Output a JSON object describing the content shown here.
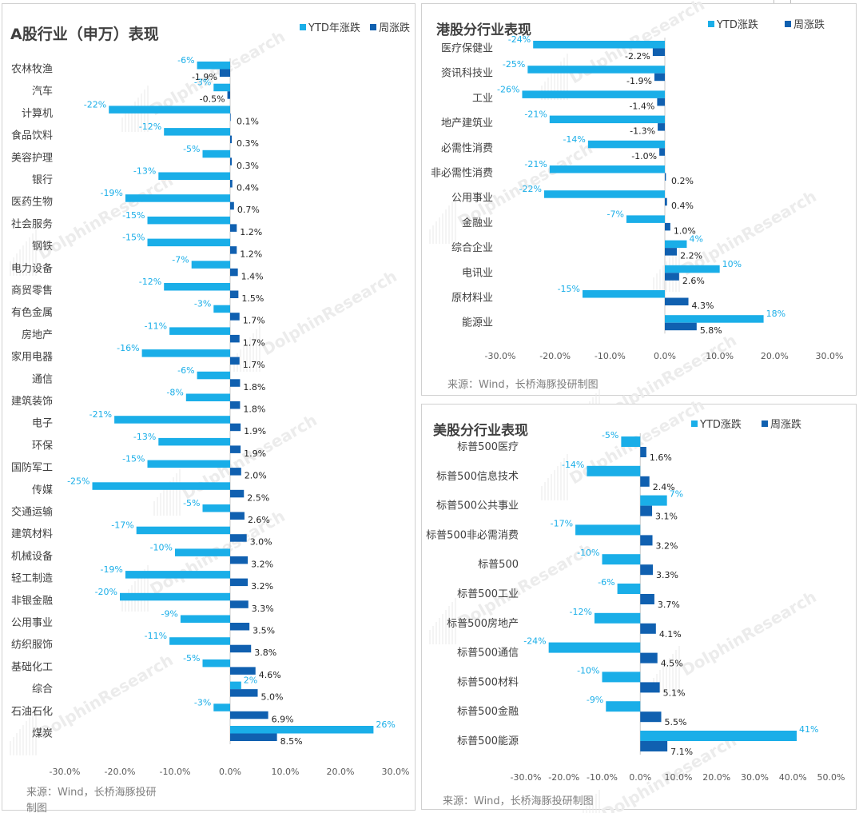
{
  "colors": {
    "ytd": "#1aaee8",
    "week": "#1060b0",
    "title": "#404040",
    "axis": "#c8c8c8",
    "source": "#7f7f7f"
  },
  "chart_data": [
    {
      "id": "a-share",
      "type": "bar",
      "orientation": "horizontal",
      "title": "A股行业（申万）表现",
      "legend": [
        "YTD年涨跌",
        "周涨跌"
      ],
      "legend_position": "top-right",
      "categories": [
        "农林牧渔",
        "汽车",
        "计算机",
        "食品饮料",
        "美容护理",
        "银行",
        "医药生物",
        "社会服务",
        "钢铁",
        "电力设备",
        "商贸零售",
        "有色金属",
        "房地产",
        "家用电器",
        "通信",
        "建筑装饰",
        "电子",
        "环保",
        "国防军工",
        "传媒",
        "交通运输",
        "建筑材料",
        "机械设备",
        "轻工制造",
        "非银金融",
        "公用事业",
        "纺织服饰",
        "基础化工",
        "综合",
        "石油石化",
        "煤炭"
      ],
      "series": [
        {
          "name": "YTD年涨跌",
          "values": [
            -6,
            -3,
            -22,
            -12,
            -5,
            -13,
            -19,
            -15,
            -15,
            -7,
            -12,
            -3,
            -11,
            -16,
            -6,
            -8,
            -21,
            -13,
            -15,
            -25,
            -5,
            -17,
            -10,
            -19,
            -20,
            -9,
            -11,
            -5,
            2,
            -3,
            26
          ],
          "labels": [
            "-6%",
            "-3%",
            "-22%",
            "-12%",
            "-5%",
            "-13%",
            "-19%",
            "-15%",
            "-15%",
            "-7%",
            "-12%",
            "-3%",
            "-11%",
            "-16%",
            "-6%",
            "-8%",
            "-21%",
            "-13%",
            "-15%",
            "-25%",
            "-5%",
            "-17%",
            "-10%",
            "-19%",
            "-20%",
            "-9%",
            "-11%",
            "-5%",
            "2%",
            "-3%",
            "26%"
          ]
        },
        {
          "name": "周涨跌",
          "values": [
            -1.9,
            -0.5,
            0.1,
            0.3,
            0.3,
            0.4,
            0.7,
            1.2,
            1.2,
            1.4,
            1.5,
            1.7,
            1.7,
            1.7,
            1.8,
            1.8,
            1.9,
            1.9,
            2.0,
            2.5,
            2.6,
            3.0,
            3.2,
            3.2,
            3.3,
            3.5,
            3.8,
            4.6,
            5.0,
            6.9,
            8.5
          ],
          "labels": [
            "-1.9%",
            "-0.5%",
            "0.1%",
            "0.3%",
            "0.3%",
            "0.4%",
            "0.7%",
            "1.2%",
            "1.2%",
            "1.4%",
            "1.5%",
            "1.7%",
            "1.7%",
            "1.7%",
            "1.8%",
            "1.8%",
            "1.9%",
            "1.9%",
            "2.0%",
            "2.5%",
            "2.6%",
            "3.0%",
            "3.2%",
            "3.2%",
            "3.3%",
            "3.5%",
            "3.8%",
            "4.6%",
            "5.0%",
            "6.9%",
            "8.5%"
          ]
        }
      ],
      "xlim": [
        -30,
        30
      ],
      "ticks": [
        -30,
        -20,
        -10,
        0,
        10,
        20,
        30
      ],
      "tick_labels": [
        "-30.0%",
        "-20.0%",
        "-10.0%",
        "0.0%",
        "10.0%",
        "20.0%",
        "30.0%"
      ],
      "source": "来源：Wind，长桥海豚投研",
      "source_cont": "制图"
    },
    {
      "id": "hk",
      "type": "bar",
      "orientation": "horizontal",
      "title": "港股分行业表现",
      "legend": [
        "YTD涨跌",
        "周涨跌"
      ],
      "legend_position": "top-right",
      "categories": [
        "医疗保健业",
        "资讯科技业",
        "工业",
        "地产建筑业",
        "必需性消费",
        "非必需性消费",
        "公用事业",
        "金融业",
        "综合企业",
        "电讯业",
        "原材料业",
        "能源业"
      ],
      "series": [
        {
          "name": "YTD涨跌",
          "values": [
            -24,
            -25,
            -26,
            -21,
            -14,
            -21,
            -22,
            -7,
            4,
            10,
            -15,
            18
          ],
          "labels": [
            "-24%",
            "-25%",
            "-26%",
            "-21%",
            "-14%",
            "-21%",
            "-22%",
            "-7%",
            "4%",
            "10%",
            "-15%",
            "18%"
          ]
        },
        {
          "name": "周涨跌",
          "values": [
            -2.2,
            -1.9,
            -1.4,
            -1.3,
            -1.0,
            0.2,
            0.4,
            1.0,
            2.2,
            2.6,
            4.3,
            5.8
          ],
          "labels": [
            "-2.2%",
            "-1.9%",
            "-1.4%",
            "-1.3%",
            "-1.0%",
            "0.2%",
            "0.4%",
            "1.0%",
            "2.2%",
            "2.6%",
            "4.3%",
            "5.8%"
          ]
        }
      ],
      "xlim": [
        -30,
        30
      ],
      "ticks": [
        -30,
        -20,
        -10,
        0,
        10,
        20,
        30
      ],
      "tick_labels": [
        "-30.0%",
        "-20.0%",
        "-10.0%",
        "0.0%",
        "10.0%",
        "20.0%",
        "30.0%"
      ],
      "source": "来源：Wind，长桥海豚投研制图"
    },
    {
      "id": "us",
      "type": "bar",
      "orientation": "horizontal",
      "title": "美股分行业表现",
      "legend": [
        "YTD涨跌",
        "周涨跌"
      ],
      "legend_position": "top-right",
      "categories": [
        "标普500医疗",
        "标普500信息技术",
        "标普500公共事业",
        "标普500非必需消费",
        "标普500",
        "标普500工业",
        "标普500房地产",
        "标普500通信",
        "标普500材料",
        "标普500金融",
        "标普500能源"
      ],
      "series": [
        {
          "name": "YTD涨跌",
          "values": [
            -5,
            -14,
            7,
            -17,
            -10,
            -6,
            -12,
            -24,
            -10,
            -9,
            41
          ],
          "labels": [
            "-5%",
            "-14%",
            "7%",
            "-17%",
            "-10%",
            "-6%",
            "-12%",
            "-24%",
            "-10%",
            "-9%",
            "41%"
          ]
        },
        {
          "name": "周涨跌",
          "values": [
            1.6,
            2.4,
            3.1,
            3.2,
            3.3,
            3.7,
            4.1,
            4.5,
            5.1,
            5.5,
            7.1
          ],
          "labels": [
            "1.6%",
            "2.4%",
            "3.1%",
            "3.2%",
            "3.3%",
            "3.7%",
            "4.1%",
            "4.5%",
            "5.1%",
            "5.5%",
            "7.1%"
          ]
        }
      ],
      "xlim": [
        -30,
        50
      ],
      "ticks": [
        -30,
        -20,
        -10,
        0,
        10,
        20,
        30,
        40,
        50
      ],
      "tick_labels": [
        "-30.0%",
        "-20.0%",
        "-10.0%",
        "0.0%",
        "10.0%",
        "20.0%",
        "30.0%",
        "40.0%",
        "50.0%"
      ],
      "source": "来源：Wind，长桥海豚投研制图"
    }
  ]
}
